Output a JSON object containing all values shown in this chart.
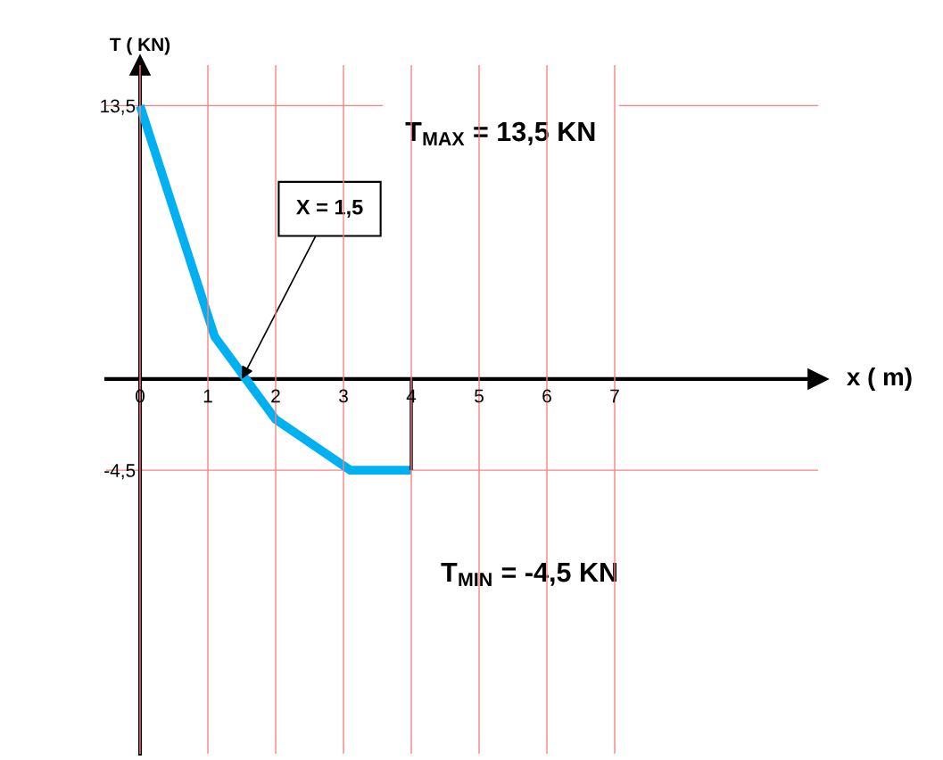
{
  "chart_data": {
    "type": "line",
    "xlabel": "x ( m)",
    "ylabel": "T ( KN)",
    "x": [
      0,
      1.1,
      2,
      3.1,
      4
    ],
    "series": [
      {
        "color": "#00b0f0",
        "values": [
          13.5,
          2.1,
          -2,
          -4.5,
          -4.5
        ]
      },
      {
        "color": "#000000",
        "x": [
          4,
          4
        ],
        "values": [
          -4.5,
          0
        ]
      }
    ],
    "xlim": [
      -0.5,
      10
    ],
    "ylim": [
      -18.5,
      15.5
    ],
    "xticks": [
      0,
      1,
      2,
      3,
      4,
      5,
      6,
      7
    ],
    "yticks": [
      {
        "value": 13.5,
        "label": "13,5"
      },
      {
        "value": -4.5,
        "label": "-4,5"
      }
    ],
    "grid": true,
    "marker": "none",
    "line_style": "solid",
    "annotations": [
      {
        "text": "X = 1,5",
        "x": 1.5,
        "y": 0
      },
      "T$_{MAX}$ = 13,5 KN",
      "T$_{MIN}$ = -4,5 KN"
    ]
  }
}
